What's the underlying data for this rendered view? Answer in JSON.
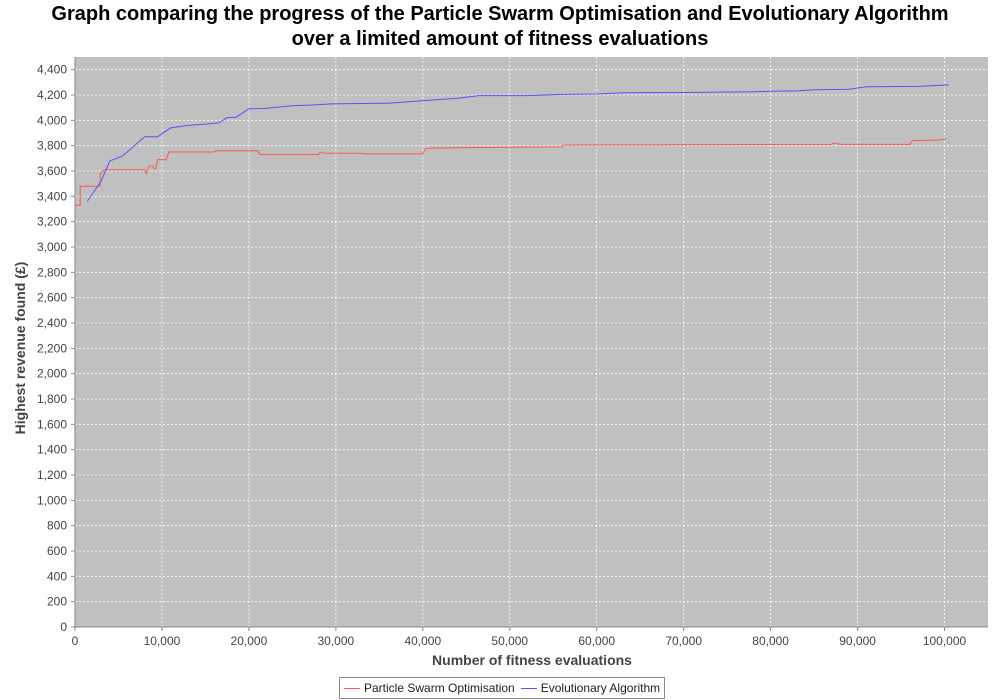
{
  "chart_data": {
    "type": "line",
    "title_line1": "Graph comparing the progress of the Particle Swarm Optimisation and Evolutionary Algorithm",
    "title_line2": "over a limited amount of fitness evaluations",
    "xlabel": "Number of fitness evaluations",
    "ylabel": "Highest revenue found (£)",
    "xlim": [
      0,
      105000
    ],
    "ylim": [
      0,
      4500
    ],
    "x_ticks": [
      0,
      10000,
      20000,
      30000,
      40000,
      50000,
      60000,
      70000,
      80000,
      90000,
      100000
    ],
    "x_tick_labels": [
      "0",
      "10,000",
      "20,000",
      "30,000",
      "40,000",
      "50,000",
      "60,000",
      "70,000",
      "80,000",
      "90,000",
      "100,000"
    ],
    "y_ticks": [
      0,
      200,
      400,
      600,
      800,
      1000,
      1200,
      1400,
      1600,
      1800,
      2000,
      2200,
      2400,
      2600,
      2800,
      3000,
      3200,
      3400,
      3600,
      3800,
      4000,
      4200,
      4400
    ],
    "y_tick_labels": [
      "0",
      "200",
      "400",
      "600",
      "800",
      "1,000",
      "1,200",
      "1,400",
      "1,600",
      "1,800",
      "2,000",
      "2,200",
      "2,400",
      "2,600",
      "2,800",
      "3,000",
      "3,200",
      "3,400",
      "3,600",
      "3,800",
      "4,000",
      "4,200",
      "4,400"
    ],
    "grid": true,
    "legend_position": "bottom",
    "background": "#c0c0c0",
    "series": [
      {
        "name": "Particle Swarm Optimisation",
        "color": "#ff5555",
        "points": [
          [
            0,
            3330
          ],
          [
            600,
            3330
          ],
          [
            600,
            3480
          ],
          [
            2900,
            3480
          ],
          [
            2900,
            3580
          ],
          [
            3400,
            3610
          ],
          [
            8000,
            3610
          ],
          [
            8200,
            3580
          ],
          [
            8500,
            3640
          ],
          [
            8900,
            3640
          ],
          [
            9100,
            3620
          ],
          [
            9300,
            3620
          ],
          [
            9500,
            3690
          ],
          [
            10500,
            3690
          ],
          [
            10800,
            3750
          ],
          [
            16000,
            3750
          ],
          [
            16300,
            3760
          ],
          [
            21000,
            3760
          ],
          [
            21300,
            3730
          ],
          [
            28000,
            3730
          ],
          [
            28200,
            3750
          ],
          [
            28600,
            3740
          ],
          [
            33000,
            3740
          ],
          [
            33200,
            3735
          ],
          [
            40000,
            3735
          ],
          [
            40200,
            3760
          ],
          [
            40400,
            3780
          ],
          [
            45000,
            3785
          ],
          [
            56000,
            3790
          ],
          [
            56200,
            3805
          ],
          [
            87000,
            3810
          ],
          [
            87200,
            3820
          ],
          [
            88000,
            3810
          ],
          [
            96000,
            3810
          ],
          [
            96300,
            3840
          ],
          [
            99500,
            3845
          ],
          [
            100200,
            3855
          ]
        ]
      },
      {
        "name": "Evolutionary Algorithm",
        "color": "#5555ff",
        "points": [
          [
            1400,
            3360
          ],
          [
            3000,
            3520
          ],
          [
            4000,
            3680
          ],
          [
            5500,
            3720
          ],
          [
            8000,
            3870
          ],
          [
            9500,
            3870
          ],
          [
            11000,
            3940
          ],
          [
            13000,
            3960
          ],
          [
            15000,
            3970
          ],
          [
            16500,
            3980
          ],
          [
            17500,
            4020
          ],
          [
            18500,
            4025
          ],
          [
            20000,
            4090
          ],
          [
            22000,
            4095
          ],
          [
            25000,
            4115
          ],
          [
            27000,
            4120
          ],
          [
            29500,
            4130
          ],
          [
            36000,
            4135
          ],
          [
            40000,
            4155
          ],
          [
            44000,
            4175
          ],
          [
            46500,
            4195
          ],
          [
            52000,
            4195
          ],
          [
            56000,
            4205
          ],
          [
            60000,
            4208
          ],
          [
            63000,
            4218
          ],
          [
            70000,
            4220
          ],
          [
            78000,
            4225
          ],
          [
            80000,
            4230
          ],
          [
            83000,
            4232
          ],
          [
            85000,
            4242
          ],
          [
            89000,
            4245
          ],
          [
            91000,
            4265
          ],
          [
            97000,
            4268
          ],
          [
            100500,
            4280
          ]
        ]
      }
    ]
  }
}
